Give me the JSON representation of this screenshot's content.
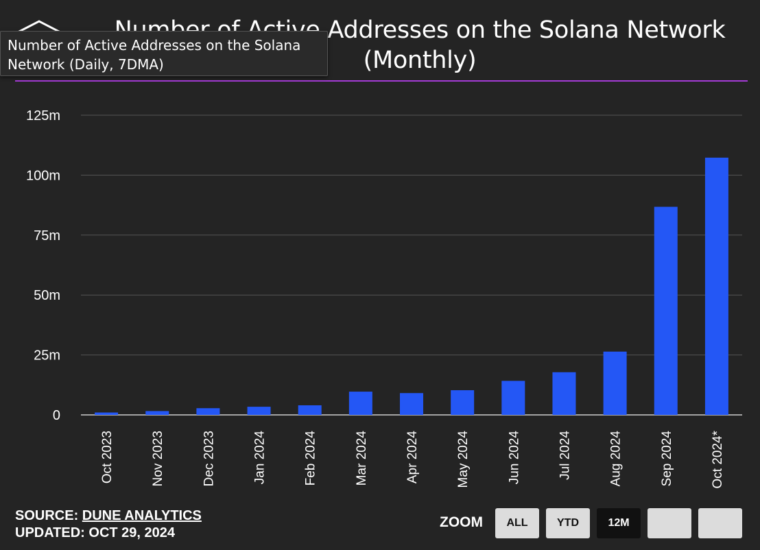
{
  "header": {
    "title_line1": "Number of Active Addresses on the Solana Network",
    "title_line2": "(Monthly)",
    "accent_color": "#a53bd6",
    "logo_icon": "hexagon-logo-icon"
  },
  "tooltip": {
    "text_line1": "Number of Active Addresses on the Solana",
    "text_line2": "Network (Daily, 7DMA)"
  },
  "chart_data": {
    "type": "bar",
    "title": "Number of Active Addresses on the Solana Network (Monthly)",
    "categories": [
      "Oct 2023",
      "Nov 2023",
      "Dec 2023",
      "Jan 2024",
      "Feb 2024",
      "Mar 2024",
      "Apr 2024",
      "May 2024",
      "Jun 2024",
      "Jul 2024",
      "Aug 2024",
      "Sep 2024",
      "Oct 2024*"
    ],
    "values": [
      1.0,
      1.6,
      2.8,
      3.4,
      4.0,
      9.7,
      9.1,
      10.3,
      14.2,
      17.8,
      26.4,
      86.8,
      107.3
    ],
    "ylim": [
      0,
      125
    ],
    "yticks": [
      0,
      25,
      50,
      75,
      100,
      125
    ],
    "ytick_labels": [
      "0",
      "25m",
      "50m",
      "75m",
      "100m",
      "125m"
    ],
    "xlabel": "",
    "ylabel": "",
    "bar_color": "#2457f5",
    "grid": true,
    "legend": "none"
  },
  "footer": {
    "source_prefix": "SOURCE: ",
    "source_link": "DUNE ANALYTICS",
    "updated": "UPDATED: OCT 29, 2024"
  },
  "zoom": {
    "label": "ZOOM",
    "buttons": [
      "ALL",
      "YTD",
      "12M",
      "",
      ""
    ],
    "selected": "12M"
  }
}
